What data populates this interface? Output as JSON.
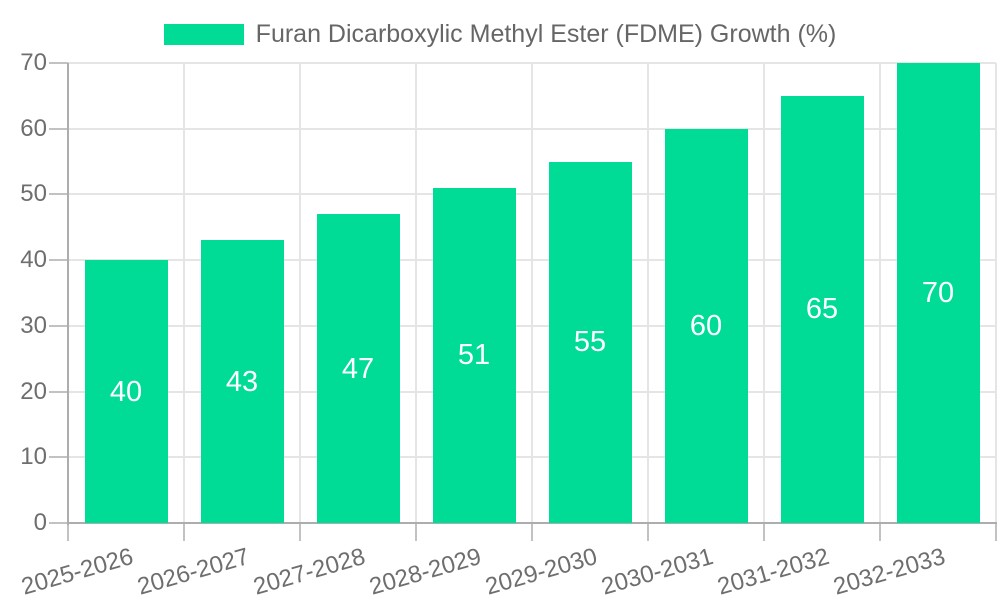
{
  "legend": {
    "items": [
      {
        "label": "Furan Dicarboxylic Methyl Ester (FDME) Growth (%)",
        "color": "#00DC96"
      }
    ]
  },
  "chart_data": {
    "type": "bar",
    "title": "",
    "categories": [
      "2025-2026",
      "2026-2027",
      "2027-2028",
      "2028-2029",
      "2029-2030",
      "2030-2031",
      "2031-2032",
      "2032-2033"
    ],
    "series": [
      {
        "name": "Furan Dicarboxylic Methyl Ester (FDME) Growth (%)",
        "color": "#00DC96",
        "values": [
          40,
          43,
          47,
          51,
          55,
          60,
          65,
          70
        ]
      }
    ],
    "xlabel": "",
    "ylabel": "",
    "ylim": [
      0,
      70
    ],
    "yticks": [
      0,
      10,
      20,
      30,
      40,
      50,
      60,
      70
    ],
    "grid": true,
    "legend_position": "top",
    "value_labels": {
      "visible": true,
      "position": "center"
    },
    "colors": {
      "bar": "#00DC96",
      "axis_text": "#6E6E6E",
      "legend_text": "#666666",
      "grid_line": "#E5E5E5",
      "axis_line": "#ADADAD",
      "tick_mark": "#C2C2C2",
      "value_label": "#FFFFFF",
      "background": "#FFFFFF"
    }
  }
}
